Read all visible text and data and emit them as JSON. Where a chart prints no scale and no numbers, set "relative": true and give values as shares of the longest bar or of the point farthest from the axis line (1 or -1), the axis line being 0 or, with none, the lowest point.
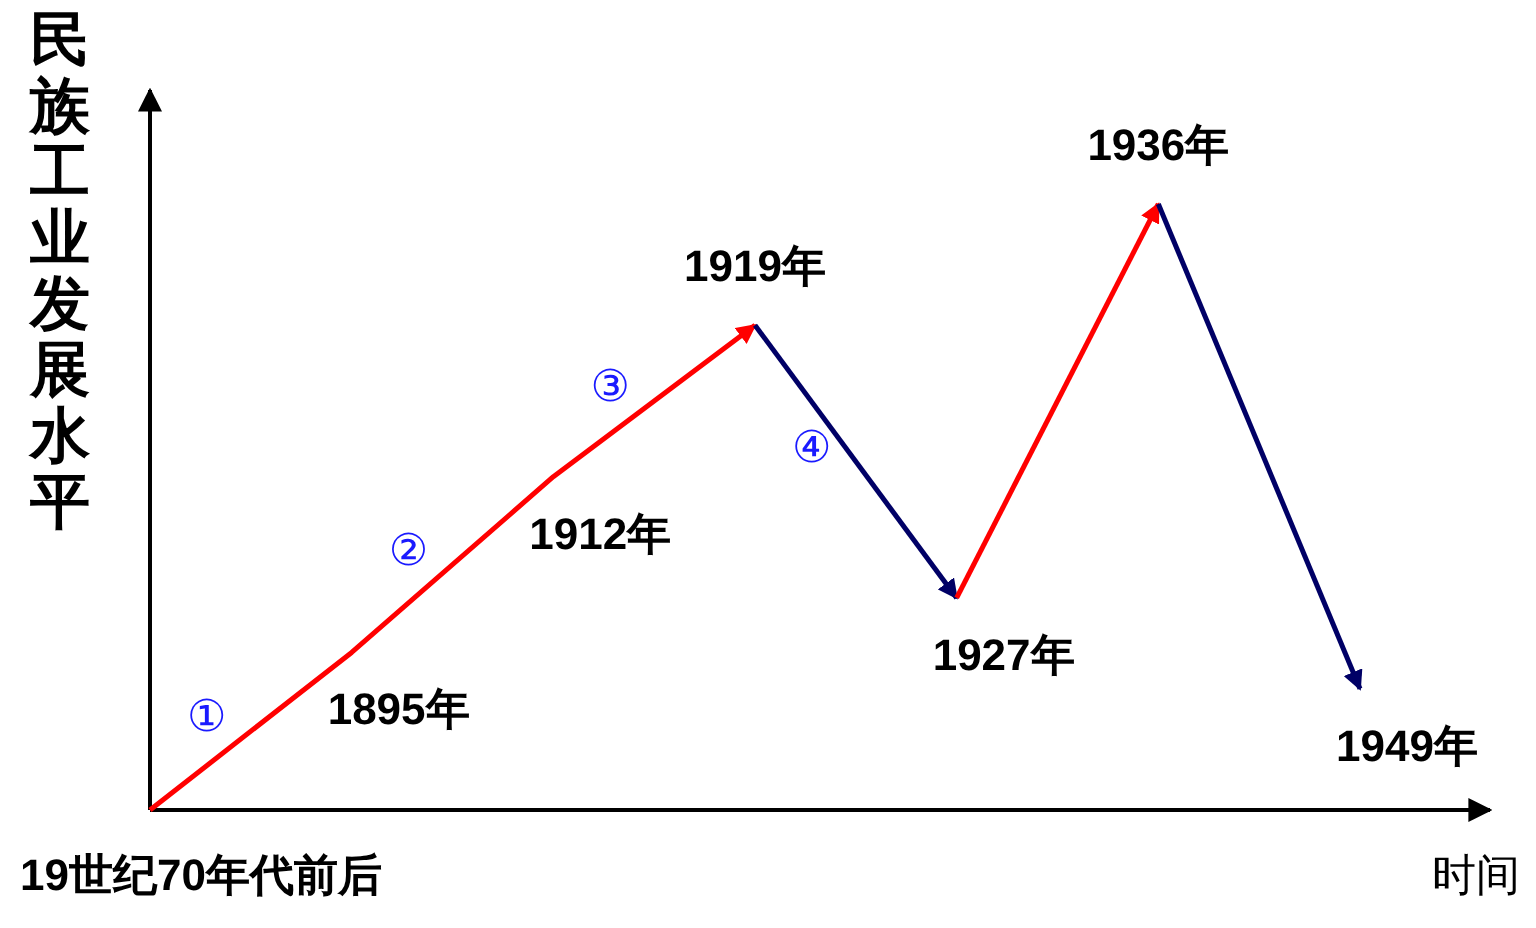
{
  "chart_data": {
    "type": "line",
    "relative": true,
    "ylabel": "民族工业发展水平",
    "xlabel": "时间",
    "categories": [
      "19世纪70年代前后",
      "1895年",
      "1912年",
      "1919年",
      "1927年",
      "1936年",
      "1949年"
    ],
    "series": [
      {
        "color": "#ff0000",
        "values": [
          0,
          0.26,
          0.55,
          0.8,
          null,
          null,
          null
        ]
      },
      {
        "color": "#000066",
        "values": [
          null,
          null,
          null,
          0.8,
          0.35,
          null,
          null
        ]
      },
      {
        "color": "#ff0000",
        "values": [
          null,
          null,
          null,
          null,
          0.35,
          1,
          null
        ]
      },
      {
        "color": "#000066",
        "values": [
          null,
          null,
          null,
          null,
          null,
          1,
          0.2
        ]
      }
    ],
    "annotations": [
      "①",
      "②",
      "③",
      "④"
    ],
    "marker": "none",
    "line_style": "solid"
  }
}
